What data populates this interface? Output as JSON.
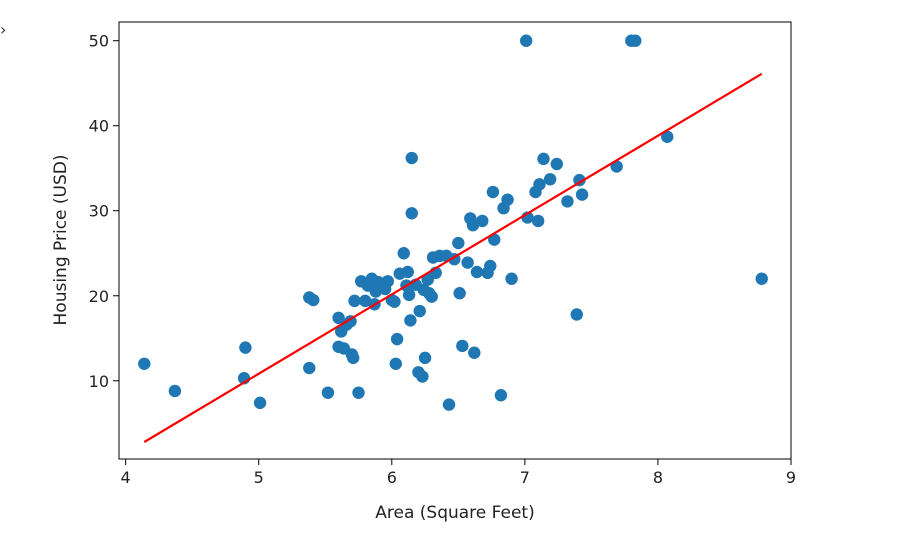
{
  "chart_data": {
    "type": "scatter",
    "xlabel": "Area (Square Feet)",
    "ylabel": "Housing Price (USD)",
    "xlim": [
      3.95,
      9.0
    ],
    "ylim": [
      0.8,
      52.2
    ],
    "xticks": [
      4,
      5,
      6,
      7,
      8,
      9
    ],
    "yticks": [
      10,
      20,
      30,
      40,
      50
    ],
    "grid": false,
    "legend": "none",
    "series": [
      {
        "kind": "points",
        "color": "#1f77b4",
        "points": [
          [
            4.14,
            12.0
          ],
          [
            4.37,
            8.8
          ],
          [
            4.89,
            10.3
          ],
          [
            4.9,
            13.9
          ],
          [
            5.01,
            7.4
          ],
          [
            5.38,
            11.5
          ],
          [
            5.38,
            19.8
          ],
          [
            5.41,
            19.5
          ],
          [
            5.52,
            8.6
          ],
          [
            5.6,
            17.4
          ],
          [
            5.6,
            14.0
          ],
          [
            5.62,
            15.8
          ],
          [
            5.64,
            13.8
          ],
          [
            5.66,
            16.6
          ],
          [
            5.69,
            17.0
          ],
          [
            5.7,
            13.1
          ],
          [
            5.71,
            12.7
          ],
          [
            5.72,
            19.4
          ],
          [
            5.75,
            8.6
          ],
          [
            5.77,
            21.7
          ],
          [
            5.8,
            19.4
          ],
          [
            5.82,
            21.2
          ],
          [
            5.85,
            22.0
          ],
          [
            5.87,
            19.0
          ],
          [
            5.88,
            20.5
          ],
          [
            5.9,
            21.6
          ],
          [
            5.92,
            21.2
          ],
          [
            5.95,
            20.8
          ],
          [
            5.97,
            21.7
          ],
          [
            6.0,
            19.5
          ],
          [
            6.02,
            19.3
          ],
          [
            6.03,
            12.0
          ],
          [
            6.04,
            14.9
          ],
          [
            6.06,
            22.6
          ],
          [
            6.09,
            25.0
          ],
          [
            6.11,
            21.2
          ],
          [
            6.12,
            22.8
          ],
          [
            6.13,
            20.1
          ],
          [
            6.14,
            17.1
          ],
          [
            6.15,
            29.7
          ],
          [
            6.15,
            36.2
          ],
          [
            6.18,
            21.3
          ],
          [
            6.2,
            11.0
          ],
          [
            6.21,
            18.2
          ],
          [
            6.23,
            10.5
          ],
          [
            6.24,
            20.7
          ],
          [
            6.25,
            12.7
          ],
          [
            6.27,
            21.9
          ],
          [
            6.28,
            20.3
          ],
          [
            6.3,
            19.9
          ],
          [
            6.31,
            24.5
          ],
          [
            6.33,
            22.7
          ],
          [
            6.36,
            24.7
          ],
          [
            6.41,
            24.7
          ],
          [
            6.43,
            7.2
          ],
          [
            6.47,
            24.3
          ],
          [
            6.5,
            26.2
          ],
          [
            6.51,
            20.3
          ],
          [
            6.53,
            14.1
          ],
          [
            6.57,
            23.9
          ],
          [
            6.59,
            29.1
          ],
          [
            6.61,
            28.3
          ],
          [
            6.62,
            13.3
          ],
          [
            6.64,
            22.8
          ],
          [
            6.68,
            28.8
          ],
          [
            6.72,
            22.7
          ],
          [
            6.74,
            23.5
          ],
          [
            6.76,
            32.2
          ],
          [
            6.77,
            26.6
          ],
          [
            6.82,
            8.3
          ],
          [
            6.84,
            30.3
          ],
          [
            6.87,
            31.3
          ],
          [
            6.9,
            22.0
          ],
          [
            7.01,
            50.0
          ],
          [
            7.02,
            29.2
          ],
          [
            7.08,
            32.2
          ],
          [
            7.1,
            28.8
          ],
          [
            7.11,
            33.1
          ],
          [
            7.14,
            36.1
          ],
          [
            7.19,
            33.7
          ],
          [
            7.24,
            35.5
          ],
          [
            7.32,
            31.1
          ],
          [
            7.39,
            17.8
          ],
          [
            7.41,
            33.6
          ],
          [
            7.43,
            31.9
          ],
          [
            7.69,
            35.2
          ],
          [
            7.8,
            50.0
          ],
          [
            7.83,
            50.0
          ],
          [
            8.07,
            38.7
          ],
          [
            8.78,
            22.0
          ]
        ]
      },
      {
        "kind": "line",
        "color": "#ff0000",
        "points": [
          [
            4.14,
            2.8
          ],
          [
            8.78,
            46.1
          ]
        ]
      }
    ]
  }
}
